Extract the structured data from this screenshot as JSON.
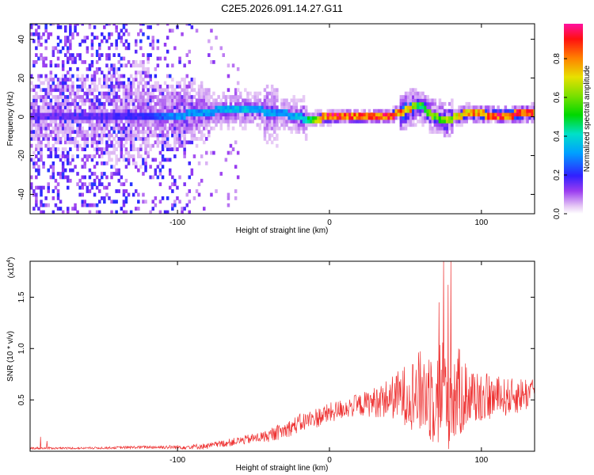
{
  "title": "C2E5.2026.091.14.27.G11",
  "chart_data": [
    {
      "type": "heatmap",
      "name": "spectrogram",
      "xlabel": "Height of straight line (km)",
      "ylabel": "Frequency (Hz)",
      "xlim": [
        -197,
        135
      ],
      "ylim": [
        -50,
        48
      ],
      "xticks": [
        -100,
        0,
        100
      ],
      "yticks": [
        -40,
        -20,
        0,
        20,
        40
      ],
      "colorbar": {
        "label": "Normalized spectral amplitude",
        "range": [
          0,
          0.98
        ],
        "ticks": [
          0.0,
          0.2,
          0.4,
          0.6,
          0.8
        ]
      },
      "ridge": {
        "description": "dominant frequency ridge",
        "x": [
          -160,
          -120,
          -100,
          -80,
          -60,
          -40,
          -25,
          -15,
          0,
          20,
          40,
          52,
          58,
          65,
          75,
          90,
          110,
          135
        ],
        "y": [
          0,
          0,
          0,
          2,
          3,
          2,
          0,
          -2,
          -1,
          -1,
          0,
          3,
          6,
          1,
          -3,
          1,
          0,
          1
        ],
        "amplitude": [
          0.15,
          0.2,
          0.3,
          0.3,
          0.35,
          0.3,
          0.3,
          0.45,
          0.9,
          0.8,
          0.85,
          0.75,
          0.5,
          0.55,
          0.6,
          0.75,
          0.85,
          0.8
        ]
      }
    },
    {
      "type": "line",
      "name": "snr",
      "xlabel": "Height of straight line (km)",
      "ylabel": "SNR (10 * v/v)",
      "y_multiplier": "(x10",
      "y_multiplier_exp": "4",
      "y_multiplier_close": ")",
      "xlim": [
        -197,
        135
      ],
      "ylim": [
        0,
        1.85
      ],
      "xticks": [
        -100,
        0,
        100
      ],
      "yticks": [
        0.5,
        1.0,
        1.5
      ],
      "ytick_labels": [
        "0.5",
        "1.0",
        "1.5"
      ],
      "color": "#ee3333",
      "series": [
        {
          "name": "SNR envelope",
          "x": [
            -197,
            -160,
            -120,
            -100,
            -80,
            -60,
            -40,
            -30,
            -20,
            -10,
            0,
            10,
            20,
            30,
            40,
            50,
            60,
            70,
            75,
            80,
            85,
            90,
            100,
            110,
            120,
            135
          ],
          "y_mean": [
            0.03,
            0.03,
            0.04,
            0.04,
            0.05,
            0.1,
            0.15,
            0.2,
            0.27,
            0.32,
            0.37,
            0.42,
            0.45,
            0.48,
            0.52,
            0.55,
            0.57,
            0.58,
            0.58,
            0.57,
            0.56,
            0.55,
            0.53,
            0.52,
            0.53,
            0.58
          ],
          "y_spread": [
            0.01,
            0.01,
            0.015,
            0.02,
            0.03,
            0.04,
            0.06,
            0.08,
            0.09,
            0.1,
            0.1,
            0.1,
            0.11,
            0.15,
            0.2,
            0.3,
            0.42,
            0.55,
            0.6,
            0.55,
            0.45,
            0.35,
            0.25,
            0.2,
            0.18,
            0.17
          ],
          "peaks": [
            [
              -190,
              0.14
            ],
            [
              -186,
              0.1
            ],
            [
              75,
              1.85
            ],
            [
              80,
              1.85
            ],
            [
              78,
              1.62
            ],
            [
              72,
              1.45
            ]
          ]
        }
      ]
    }
  ]
}
